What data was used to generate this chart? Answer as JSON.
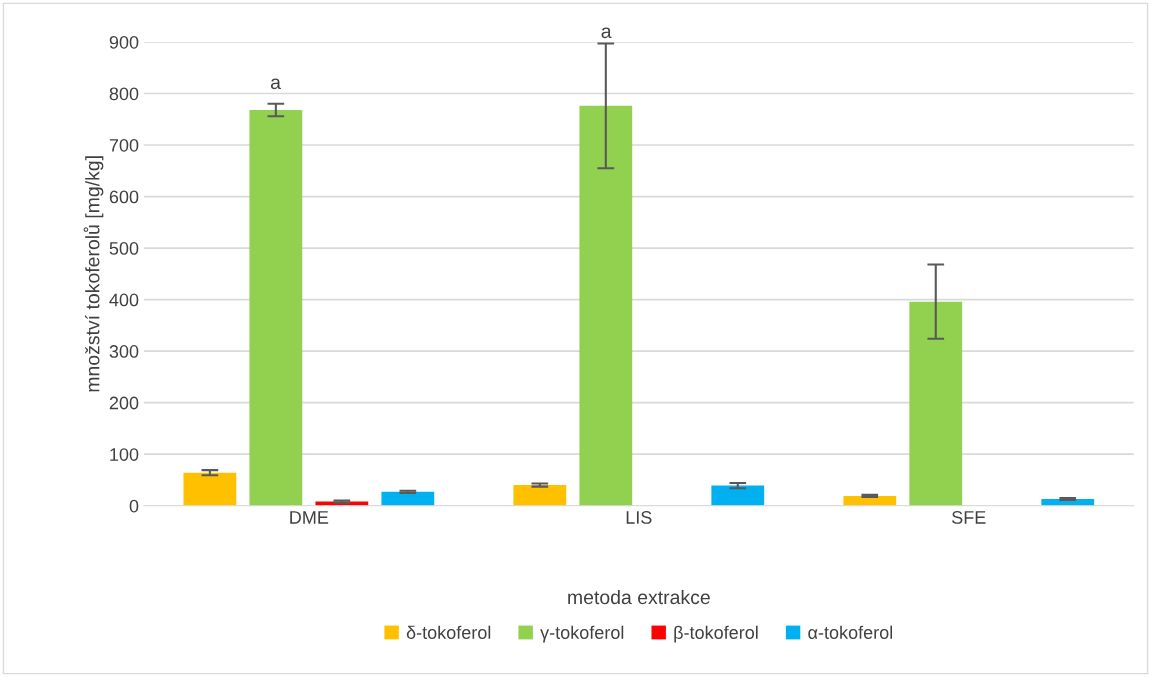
{
  "chart_data": {
    "type": "bar",
    "xlabel": "metoda extrakce",
    "ylabel": "množství tokoferolů [mg/kg]",
    "categories": [
      "DME",
      "LIS",
      "SFE"
    ],
    "series": [
      {
        "name": "δ-tokoferol",
        "color": "#ffc000",
        "values": [
          64,
          40,
          19
        ],
        "errors": [
          5,
          3,
          2
        ]
      },
      {
        "name": "γ-tokoferol",
        "color": "#92d050",
        "values": [
          768,
          776,
          396
        ],
        "errors": [
          12,
          121,
          72
        ]
      },
      {
        "name": "β-tokoferol",
        "color": "#ff0000",
        "values": [
          8,
          null,
          null
        ],
        "errors": [
          2,
          null,
          null
        ]
      },
      {
        "name": "α-tokoferol",
        "color": "#00b0f0",
        "values": [
          27,
          39,
          13
        ],
        "errors": [
          2,
          5,
          2
        ]
      }
    ],
    "ylim": [
      0,
      900
    ],
    "yticks": [
      0,
      100,
      200,
      300,
      400,
      500,
      600,
      700,
      800,
      900
    ],
    "grid": "y",
    "legend": "bottom",
    "annotations": [
      "a",
      "a"
    ]
  }
}
